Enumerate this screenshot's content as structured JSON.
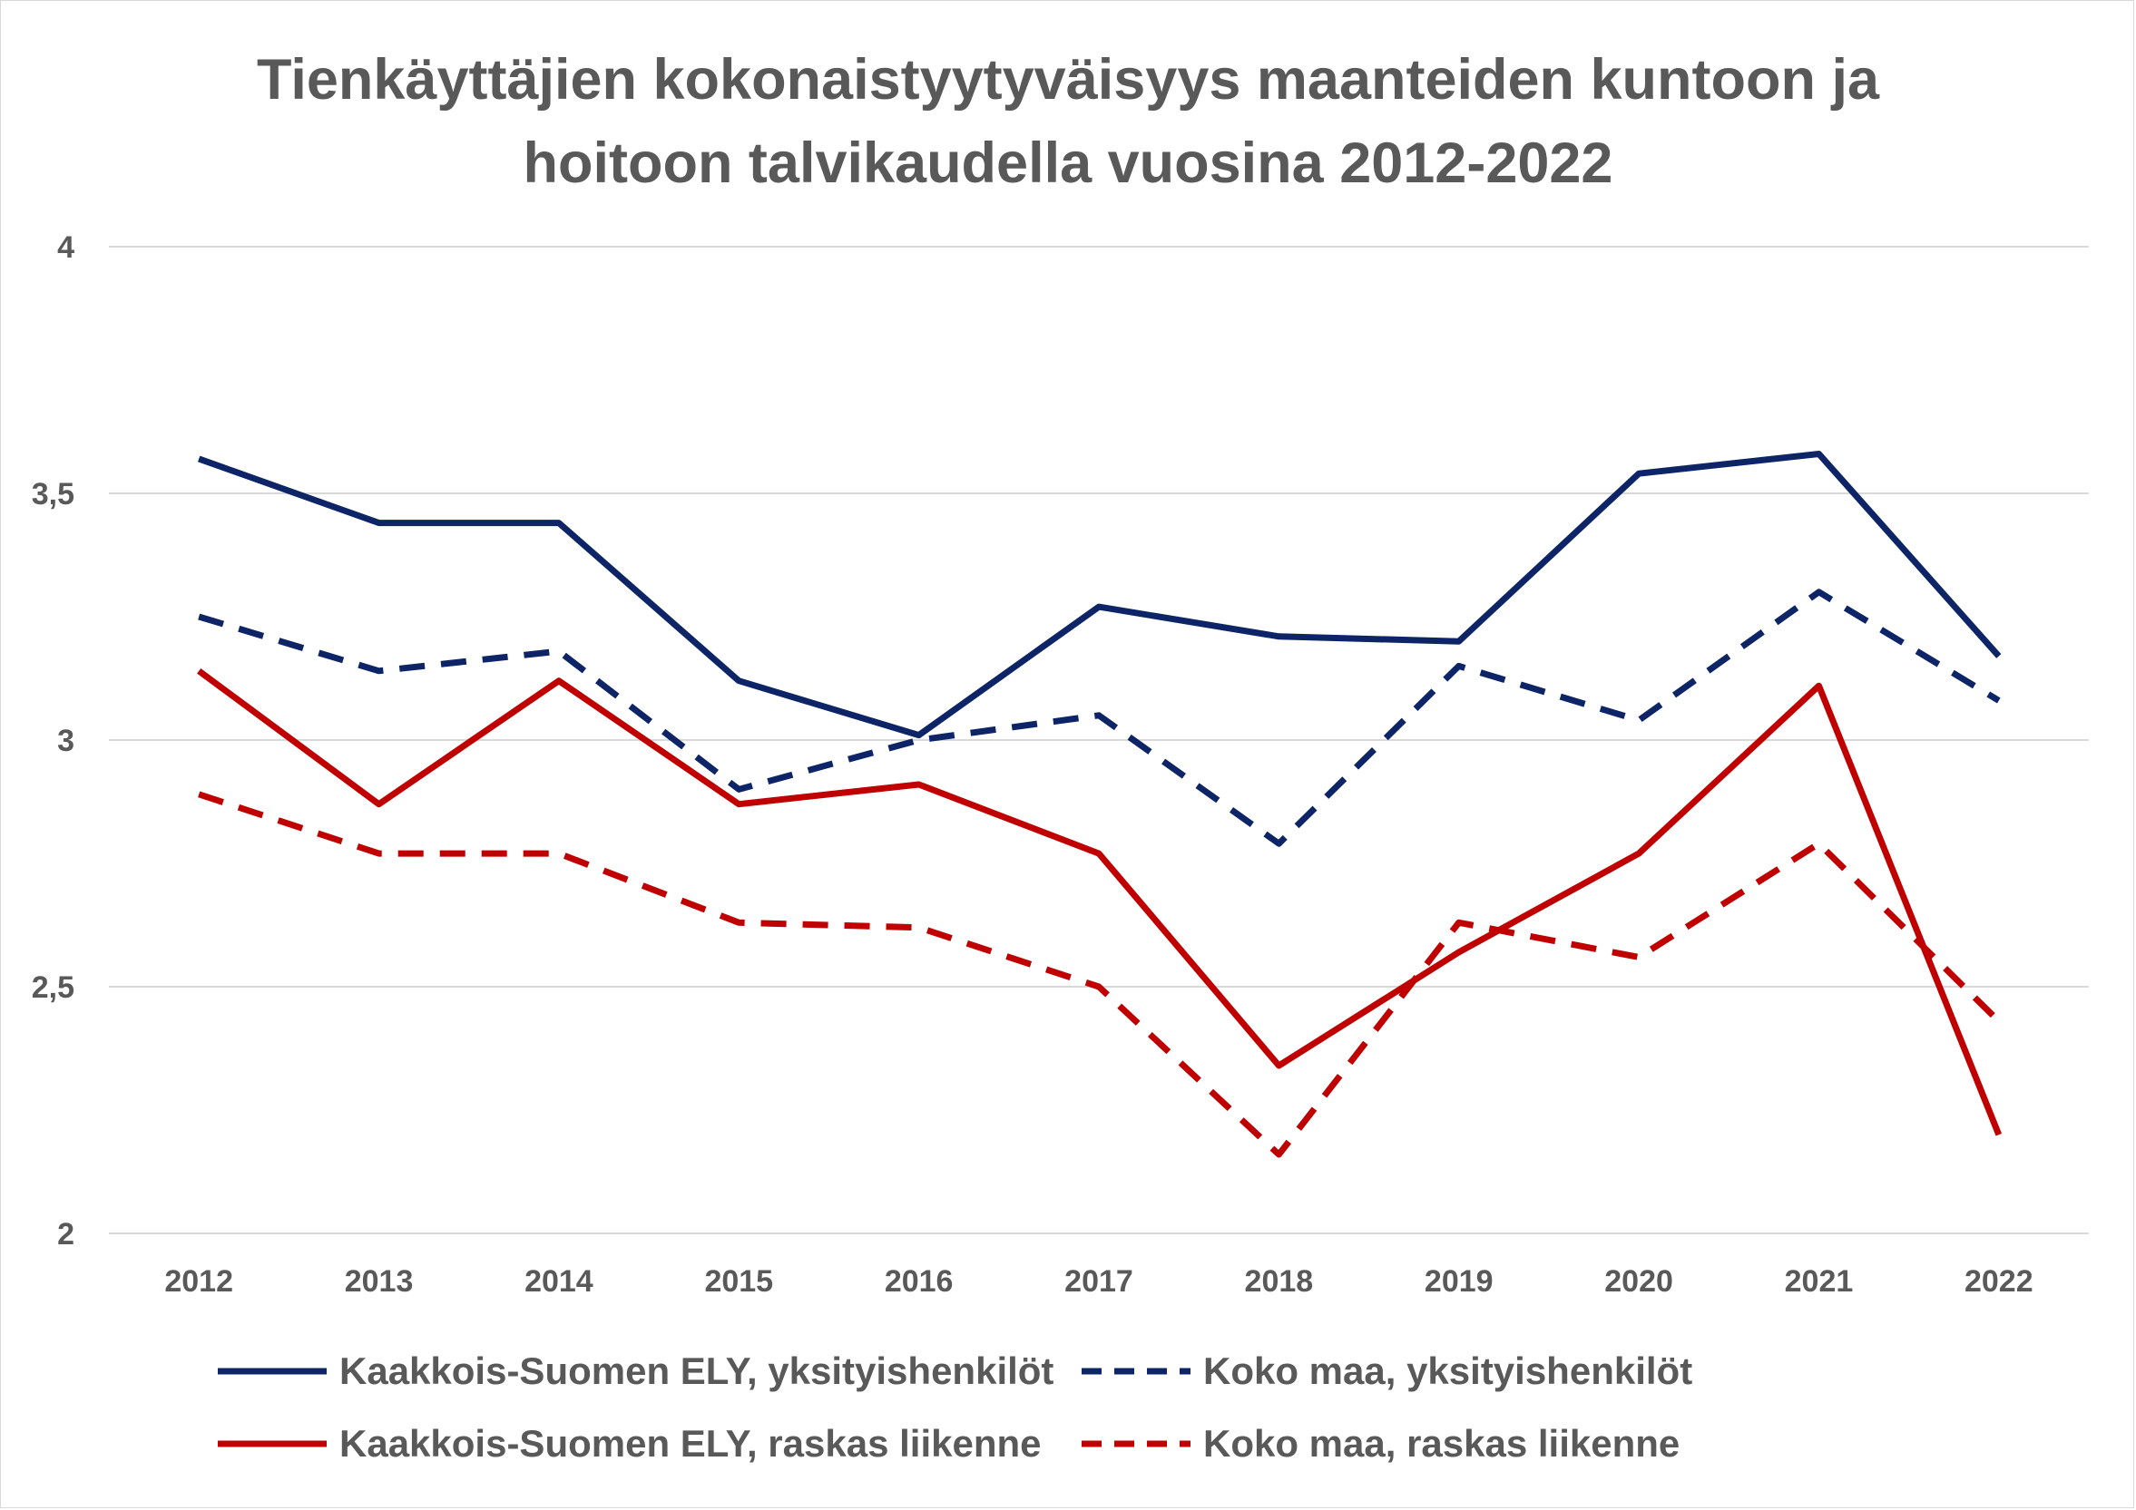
{
  "chart_data": {
    "type": "line",
    "title_lines": [
      "Tienkäyttäjien kokonaistyytyväisyys maanteiden kuntoon ja",
      "hoitoon talvikaudella vuosina 2012-2022"
    ],
    "xlabel": "",
    "ylabel": "",
    "categories": [
      "2012",
      "2013",
      "2014",
      "2015",
      "2016",
      "2017",
      "2018",
      "2019",
      "2020",
      "2021",
      "2022"
    ],
    "ylim": [
      2,
      4
    ],
    "yticks": [
      2,
      2.5,
      3,
      3.5,
      4
    ],
    "ytick_labels": [
      "2",
      "2,5",
      "3",
      "3,5",
      "4"
    ],
    "grid": true,
    "legend_position": "bottom",
    "series": [
      {
        "name": "Kaakkois-Suomen ELY, yksityishenkilöt",
        "color": "#0d2466",
        "dashed": false,
        "values": [
          3.57,
          3.44,
          3.44,
          3.12,
          3.01,
          3.27,
          3.21,
          3.2,
          3.54,
          3.58,
          3.17
        ]
      },
      {
        "name": "Koko maa, yksityishenkilöt",
        "color": "#0d2466",
        "dashed": true,
        "values": [
          3.25,
          3.14,
          3.18,
          2.9,
          3.0,
          3.05,
          2.79,
          3.15,
          3.04,
          3.3,
          3.08
        ]
      },
      {
        "name": "Kaakkois-Suomen ELY, raskas liikenne",
        "color": "#c00000",
        "dashed": false,
        "values": [
          3.14,
          2.87,
          3.12,
          2.87,
          2.91,
          2.77,
          2.34,
          2.57,
          2.77,
          3.11,
          2.2
        ]
      },
      {
        "name": "Koko maa, raskas liikenne",
        "color": "#c00000",
        "dashed": true,
        "values": [
          2.89,
          2.77,
          2.77,
          2.63,
          2.62,
          2.5,
          2.16,
          2.63,
          2.56,
          2.79,
          2.43
        ]
      }
    ]
  }
}
